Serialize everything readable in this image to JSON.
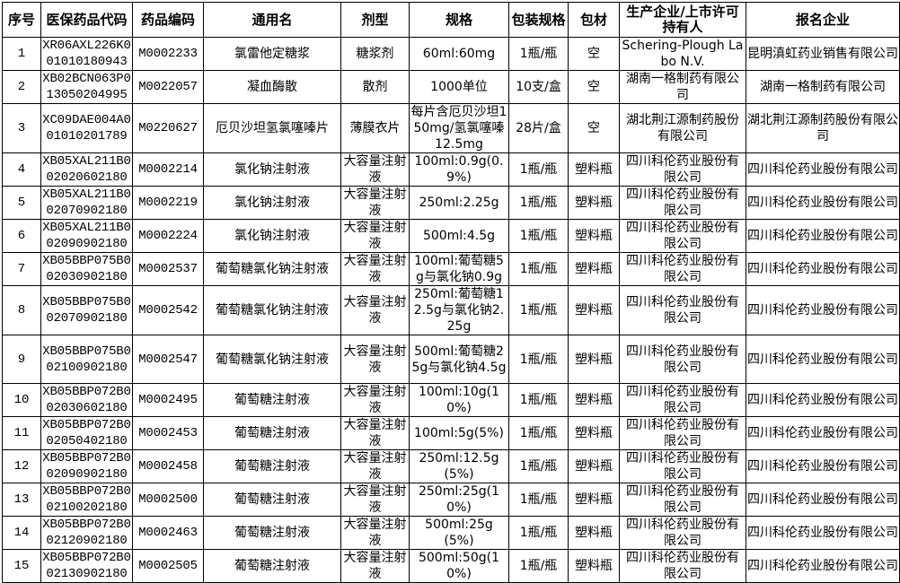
{
  "headers": [
    "序号",
    "医保药品代码",
    "药品编码",
    "通用名",
    "剂型",
    "规格",
    "包装规格",
    "包材",
    "生产企业/上市许可持有人",
    "报名企业"
  ],
  "rows": [
    [
      "1",
      "XR06AXL226K001010180943",
      "M0002233",
      "氯雷他定糖浆",
      "糖浆剂",
      "60ml:60mg",
      "1瓶/瓶",
      "空",
      "Schering-Plough Labo N.V.",
      "昆明滇虹药业销售有限公司"
    ],
    [
      "2",
      "XB02BCN063P013050204995",
      "M0022057",
      "凝血酶散",
      "散剂",
      "1000单位",
      "10支/盒",
      "空",
      "湖南一格制药有限公司",
      "湖南一格制药有限公司"
    ],
    [
      "3",
      "XC09DAE004A001010201789",
      "M0220627",
      "厄贝沙坦氢氯噻嗪片",
      "薄膜衣片",
      "每片含厄贝沙坦150mg/氢氯噻嗪12.5mg",
      "28片/盒",
      "空",
      "湖北荆江源制药股份有限公司",
      "湖北荆江源制药股份有限公司"
    ],
    [
      "4",
      "XB05XAL211B002020602180",
      "M0002214",
      "氯化钠注射液",
      "大容量注射液",
      "100ml:0.9g(0.9%)",
      "1瓶/瓶",
      "塑料瓶",
      "四川科伦药业股份有限公司",
      "四川科伦药业股份有限公司"
    ],
    [
      "5",
      "XB05XAL211B002070902180",
      "M0002219",
      "氯化钠注射液",
      "大容量注射液",
      "250ml:2.25g",
      "1瓶/瓶",
      "塑料瓶",
      "四川科伦药业股份有限公司",
      "四川科伦药业股份有限公司"
    ],
    [
      "6",
      "XB05XAL211B002090902180",
      "M0002224",
      "氯化钠注射液",
      "大容量注射液",
      "500ml:4.5g",
      "1瓶/瓶",
      "塑料瓶",
      "四川科伦药业股份有限公司",
      "四川科伦药业股份有限公司"
    ],
    [
      "7",
      "XB05BBP075B002030902180",
      "M0002537",
      "葡萄糖氯化钠注射液",
      "大容量注射液",
      "100ml:葡萄糖5g与氯化钠0.9g",
      "1瓶/瓶",
      "塑料瓶",
      "四川科伦药业股份有限公司",
      "四川科伦药业股份有限公司"
    ],
    [
      "8",
      "XB05BBP075B002070902180",
      "M0002542",
      "葡萄糖氯化钠注射液",
      "大容量注射液",
      "250ml:葡萄糖12.5g与氯化钠2.25g",
      "1瓶/瓶",
      "塑料瓶",
      "四川科伦药业股份有限公司",
      "四川科伦药业股份有限公司"
    ],
    [
      "9",
      "XB05BBP075B002100902180",
      "M0002547",
      "葡萄糖氯化钠注射液",
      "大容量注射液",
      "500ml:葡萄糖25g与氯化钠4.5g",
      "1瓶/瓶",
      "塑料瓶",
      "四川科伦药业股份有限公司",
      "四川科伦药业股份有限公司"
    ],
    [
      "10",
      "XB05BBP072B002030602180",
      "M0002495",
      "葡萄糖注射液",
      "大容量注射液",
      "100ml:10g(10%)",
      "1瓶/瓶",
      "塑料瓶",
      "四川科伦药业股份有限公司",
      "四川科伦药业股份有限公司"
    ],
    [
      "11",
      "XB05BBP072B002050402180",
      "M0002453",
      "葡萄糖注射液",
      "大容量注射液",
      "100ml:5g(5%)",
      "1瓶/瓶",
      "塑料瓶",
      "四川科伦药业股份有限公司",
      "四川科伦药业股份有限公司"
    ],
    [
      "12",
      "XB05BBP072B002090902180",
      "M0002458",
      "葡萄糖注射液",
      "大容量注射液",
      "250ml:12.5g(5%)",
      "1瓶/瓶",
      "塑料瓶",
      "四川科伦药业股份有限公司",
      "四川科伦药业股份有限公司"
    ],
    [
      "13",
      "XB05BBP072B002100202180",
      "M0002500",
      "葡萄糖注射液",
      "大容量注射液",
      "250ml:25g(10%)",
      "1瓶/瓶",
      "塑料瓶",
      "四川科伦药业股份有限公司",
      "四川科伦药业股份有限公司"
    ],
    [
      "14",
      "XB05BBP072B002120902180",
      "M0002463",
      "葡萄糖注射液",
      "大容量注射液",
      "500ml:25g(5%)",
      "1瓶/瓶",
      "塑料瓶",
      "四川科伦药业股份有限公司",
      "四川科伦药业股份有限公司"
    ],
    [
      "15",
      "XB05BBP072B002130902180",
      "M0002505",
      "葡萄糖注射液",
      "大容量注射液",
      "500ml:50g(10%)",
      "1瓶/瓶",
      "塑料瓶",
      "四川科伦药业股份有限公司",
      "四川科伦药业股份有限公司"
    ]
  ]
}
